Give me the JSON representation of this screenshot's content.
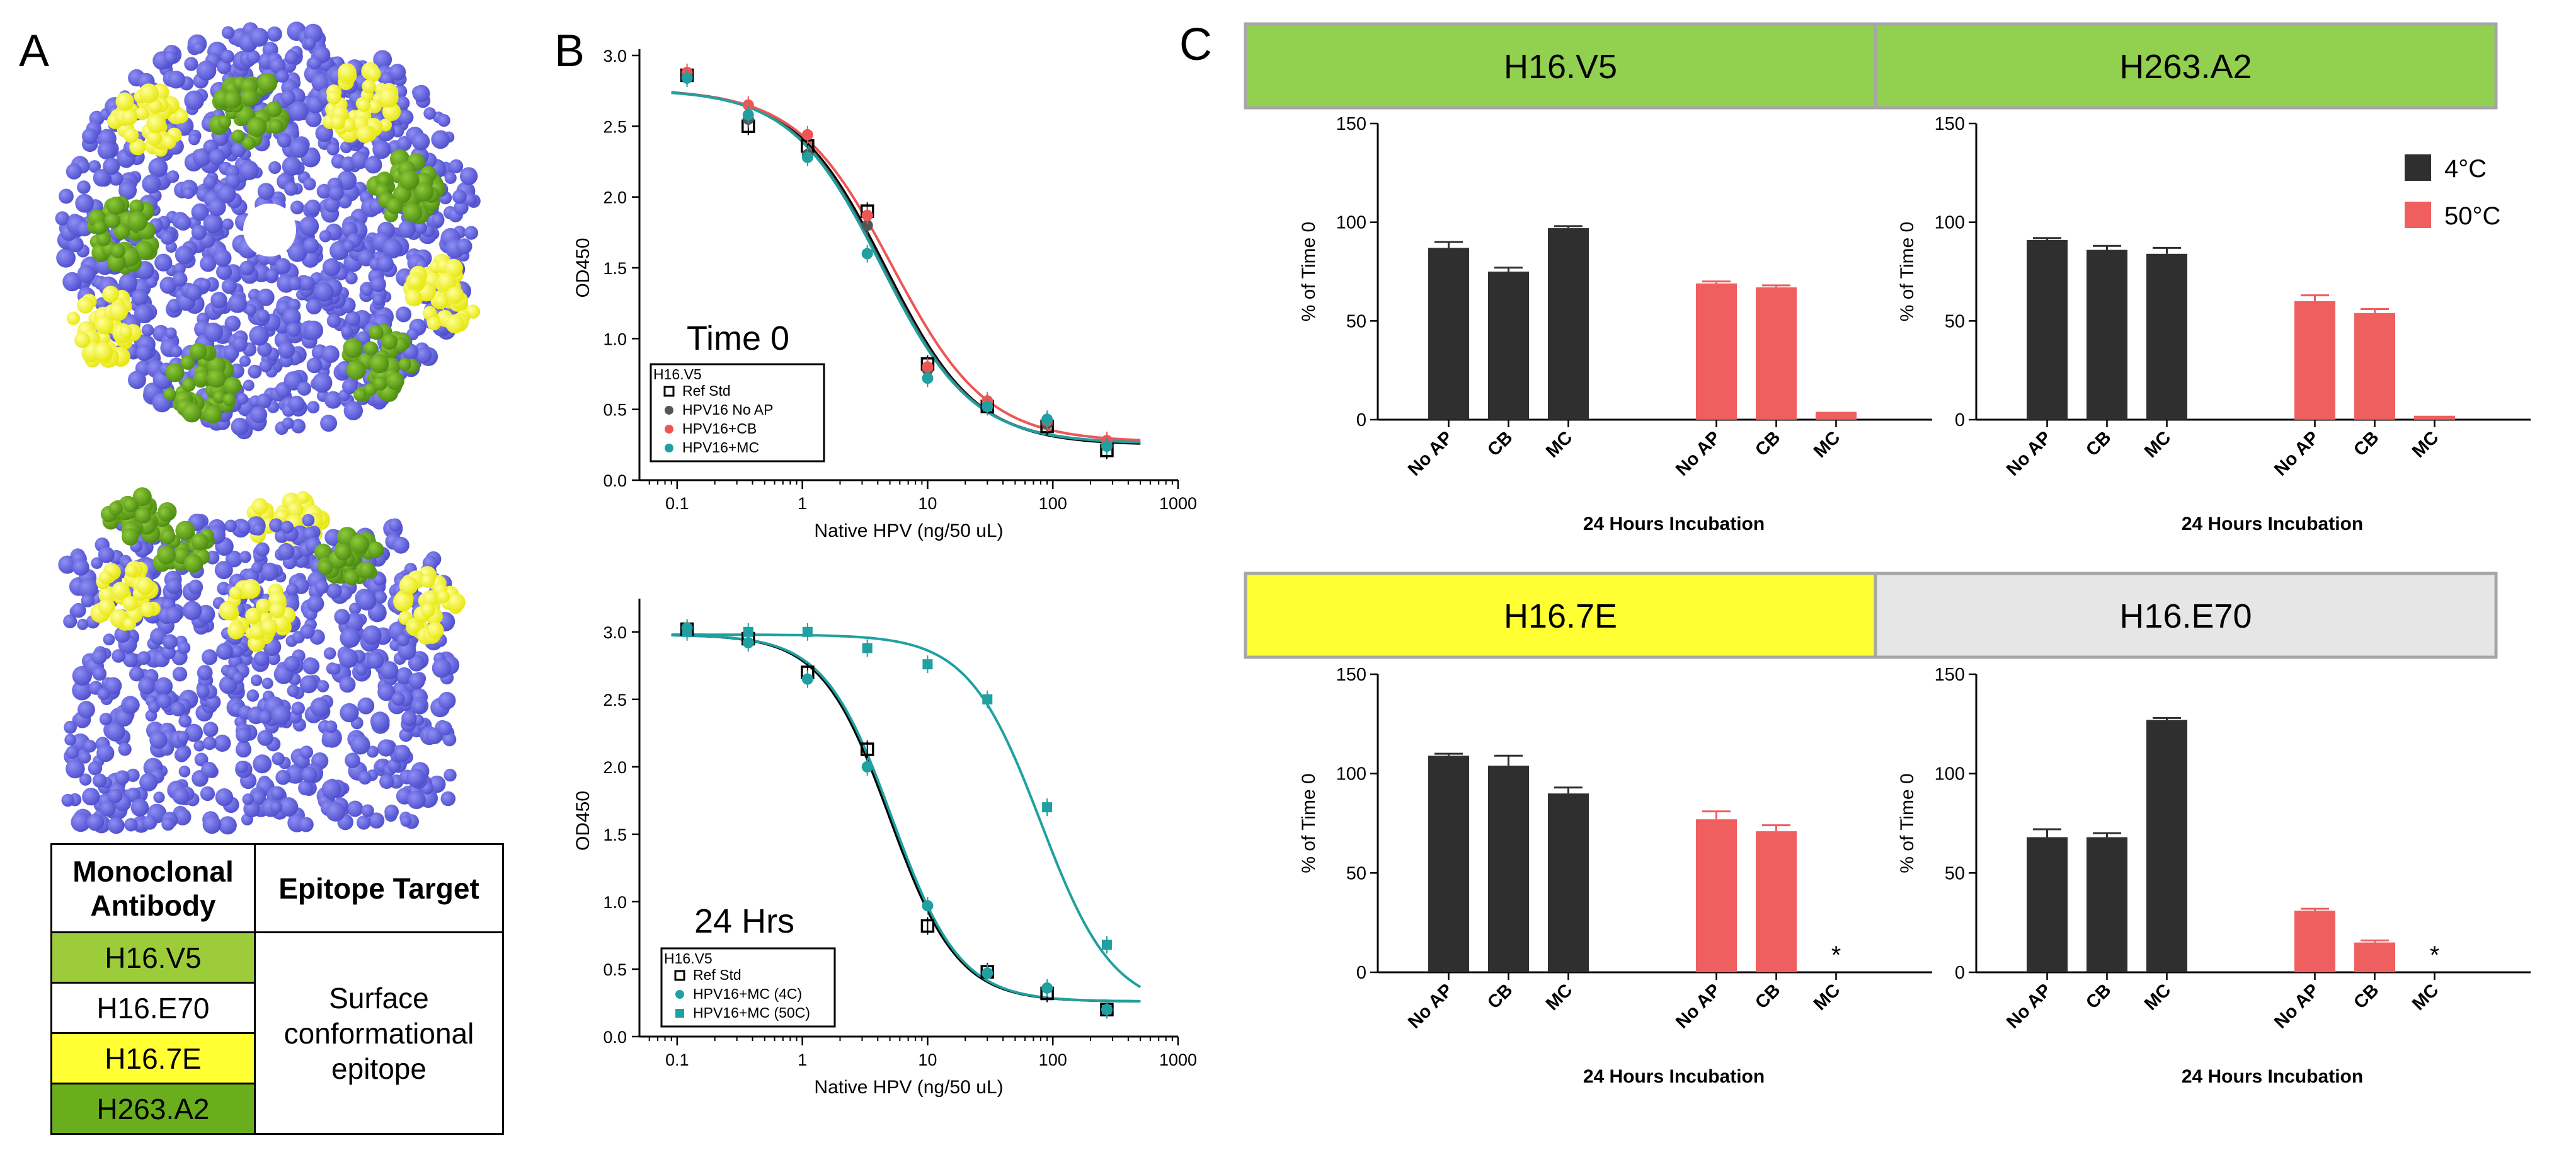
{
  "panel_labels": {
    "a": "A",
    "b": "B",
    "c": "C"
  },
  "colors": {
    "lattice": "#6666e6",
    "green_epitope": "#6aa318",
    "yellow_epitope": "#ffff33",
    "bar_4c": "#2f2f2f",
    "bar_50c": "#ef5f60",
    "title_green": "#92d050",
    "title_yellow": "#ffff33",
    "title_gray": "#e6e6e6",
    "teal": "#20a0a0",
    "red_curve": "#ee5555"
  },
  "table": {
    "col1_header": "Monoclonal Antibody",
    "col2_header": "Epitope Target",
    "rows": [
      {
        "antibody": "H16.V5",
        "color": "#9dcc3a"
      },
      {
        "antibody": "H16.E70",
        "color": "#ffffff"
      },
      {
        "antibody": "H16.7E",
        "color": "#ffff33"
      },
      {
        "antibody": "H263.A2",
        "color": "#6aae1e"
      }
    ],
    "epitope": [
      "Surface",
      "conformational",
      "epitope"
    ]
  },
  "legend_c": {
    "items": [
      {
        "label": "4°C",
        "color": "#2f2f2f"
      },
      {
        "label": "50°C",
        "color": "#ef5f60"
      }
    ]
  },
  "chart_data": [
    {
      "id": "b_top",
      "type": "scatter",
      "annotation": "Time  0",
      "xlabel": "Native HPV (ng/50 uL)",
      "ylabel": "OD450",
      "xscale": "log",
      "xlim": [
        0.05,
        1000
      ],
      "ylim": [
        0,
        3.0
      ],
      "x_ticks": [
        "0.1",
        "1",
        "10",
        "100",
        "1000"
      ],
      "y_ticks": [
        "0.0",
        "0.5",
        "1.0",
        "1.5",
        "2.0",
        "2.5",
        "3.0"
      ],
      "legend_title": "H16.V5",
      "legend_position": "bottom-left",
      "series": [
        {
          "name": "Ref Std",
          "marker": "square-open",
          "color": "#000000",
          "fit": {
            "top": 2.76,
            "bottom": 0.25,
            "ec50": 4.6,
            "hill": 1.2
          },
          "points": [
            [
              0.12,
              2.86
            ],
            [
              0.37,
              2.5
            ],
            [
              1.1,
              2.36
            ],
            [
              3.3,
              1.9
            ],
            [
              10,
              0.82
            ],
            [
              30,
              0.52
            ],
            [
              90,
              0.38
            ],
            [
              270,
              0.21
            ]
          ]
        },
        {
          "name": "HPV16 No AP",
          "marker": "circle",
          "color": "#555555",
          "fit": {
            "top": 2.76,
            "bottom": 0.26,
            "ec50": 4.4,
            "hill": 1.2
          },
          "points": [
            [
              0.12,
              2.85
            ],
            [
              0.37,
              2.55
            ],
            [
              1.1,
              2.3
            ],
            [
              3.3,
              1.8
            ],
            [
              10,
              0.78
            ],
            [
              30,
              0.55
            ],
            [
              90,
              0.4
            ],
            [
              270,
              0.25
            ]
          ]
        },
        {
          "name": "HPV16+CB",
          "marker": "circle",
          "color": "#ee5555",
          "fit": {
            "top": 2.76,
            "bottom": 0.27,
            "ec50": 5.2,
            "hill": 1.15
          },
          "points": [
            [
              0.12,
              2.88
            ],
            [
              0.37,
              2.65
            ],
            [
              1.1,
              2.44
            ],
            [
              3.3,
              1.87
            ],
            [
              10,
              0.8
            ],
            [
              30,
              0.56
            ],
            [
              90,
              0.42
            ],
            [
              270,
              0.28
            ]
          ]
        },
        {
          "name": "HPV16+MC",
          "marker": "circle",
          "color": "#20a0a0",
          "fit": {
            "top": 2.76,
            "bottom": 0.26,
            "ec50": 4.3,
            "hill": 1.2
          },
          "points": [
            [
              0.12,
              2.84
            ],
            [
              0.37,
              2.58
            ],
            [
              1.1,
              2.28
            ],
            [
              3.3,
              1.6
            ],
            [
              10,
              0.72
            ],
            [
              30,
              0.52
            ],
            [
              90,
              0.43
            ],
            [
              270,
              0.24
            ]
          ]
        }
      ]
    },
    {
      "id": "b_bottom",
      "type": "scatter",
      "annotation": "24 Hrs",
      "xlabel": "Native HPV (ng/50 uL)",
      "ylabel": "OD450",
      "xscale": "log",
      "xlim": [
        0.05,
        1000
      ],
      "ylim": [
        0,
        3.2
      ],
      "x_ticks": [
        "0.1",
        "1",
        "10",
        "100",
        "1000"
      ],
      "y_ticks": [
        "0.0",
        "0.5",
        "1.0",
        "1.5",
        "2.0",
        "2.5",
        "3.0"
      ],
      "legend_title": "H16.V5",
      "legend_position": "bottom-left",
      "series": [
        {
          "name": "Ref Std",
          "marker": "square-open",
          "color": "#000000",
          "fit": {
            "top": 2.98,
            "bottom": 0.26,
            "ec50": 5.0,
            "hill": 1.6
          },
          "points": [
            [
              0.12,
              3.02
            ],
            [
              0.37,
              2.95
            ],
            [
              1.1,
              2.7
            ],
            [
              3.3,
              2.13
            ],
            [
              10,
              0.82
            ],
            [
              30,
              0.48
            ],
            [
              90,
              0.32
            ],
            [
              270,
              0.2
            ]
          ]
        },
        {
          "name": "HPV16+MC (4C)",
          "marker": "circle",
          "color": "#20a0a0",
          "fit": {
            "top": 2.98,
            "bottom": 0.26,
            "ec50": 5.2,
            "hill": 1.6
          },
          "points": [
            [
              0.12,
              3.03
            ],
            [
              0.37,
              2.92
            ],
            [
              1.1,
              2.65
            ],
            [
              3.3,
              2.0
            ],
            [
              10,
              0.97
            ],
            [
              30,
              0.47
            ],
            [
              90,
              0.36
            ],
            [
              270,
              0.2
            ]
          ]
        },
        {
          "name": "HPV16+MC (50C)",
          "marker": "square",
          "color": "#20a0a0",
          "fit": {
            "top": 2.98,
            "bottom": 0.2,
            "ec50": 80,
            "hill": 1.5
          },
          "points": [
            [
              0.12,
              3.0
            ],
            [
              0.37,
              3.0
            ],
            [
              1.1,
              3.0
            ],
            [
              3.3,
              2.88
            ],
            [
              10,
              2.76
            ],
            [
              30,
              2.5
            ],
            [
              90,
              1.7
            ],
            [
              270,
              0.68
            ]
          ]
        }
      ]
    },
    {
      "id": "c_v5",
      "type": "bar",
      "title": "H16.V5",
      "title_color": "#92d050",
      "ylabel": "% of Time 0",
      "xlabel": "24 Hours Incubation",
      "ylim": [
        0,
        150
      ],
      "y_ticks": [
        "0",
        "50",
        "100",
        "150"
      ],
      "categories": [
        "No AP",
        "CB",
        "MC",
        "No AP",
        "CB",
        "MC"
      ],
      "values": [
        87,
        75,
        97,
        69,
        67,
        4
      ],
      "errors": [
        3,
        2,
        1,
        1,
        1,
        0
      ],
      "groups": [
        "4C",
        "4C",
        "4C",
        "50C",
        "50C",
        "50C"
      ],
      "stars": [
        "",
        "",
        "",
        "",
        "",
        ""
      ]
    },
    {
      "id": "c_a2",
      "type": "bar",
      "title": "H263.A2",
      "title_color": "#92d050",
      "ylabel": "% of Time 0",
      "xlabel": "24 Hours Incubation",
      "ylim": [
        0,
        150
      ],
      "y_ticks": [
        "0",
        "50",
        "100",
        "150"
      ],
      "categories": [
        "No AP",
        "CB",
        "MC",
        "No AP",
        "CB",
        "MC"
      ],
      "values": [
        91,
        86,
        84,
        60,
        54,
        2
      ],
      "errors": [
        1,
        2,
        3,
        3,
        2,
        0
      ],
      "groups": [
        "4C",
        "4C",
        "4C",
        "50C",
        "50C",
        "50C"
      ],
      "stars": [
        "",
        "",
        "",
        "",
        "",
        ""
      ]
    },
    {
      "id": "c_7e",
      "type": "bar",
      "title": "H16.7E",
      "title_color": "#ffff33",
      "ylabel": "% of Time 0",
      "xlabel": "24 Hours Incubation",
      "ylim": [
        0,
        150
      ],
      "y_ticks": [
        "0",
        "50",
        "100",
        "150"
      ],
      "categories": [
        "No AP",
        "CB",
        "MC",
        "No AP",
        "CB",
        "MC"
      ],
      "values": [
        109,
        104,
        90,
        77,
        71,
        0
      ],
      "errors": [
        1,
        5,
        3,
        4,
        3,
        0
      ],
      "groups": [
        "4C",
        "4C",
        "4C",
        "50C",
        "50C",
        "50C"
      ],
      "stars": [
        "",
        "",
        "",
        "",
        "",
        "*"
      ]
    },
    {
      "id": "c_e70",
      "type": "bar",
      "title": "H16.E70",
      "title_color": "#e6e6e6",
      "ylabel": "% of Time 0",
      "xlabel": "24 Hours Incubation",
      "ylim": [
        0,
        150
      ],
      "y_ticks": [
        "0",
        "50",
        "100",
        "150"
      ],
      "categories": [
        "No AP",
        "CB",
        "MC",
        "No AP",
        "CB",
        "MC"
      ],
      "values": [
        68,
        68,
        127,
        31,
        15,
        0
      ],
      "errors": [
        4,
        2,
        1,
        1,
        1,
        0
      ],
      "groups": [
        "4C",
        "4C",
        "4C",
        "50C",
        "50C",
        "50C"
      ],
      "stars": [
        "",
        "",
        "",
        "",
        "",
        "*"
      ]
    }
  ]
}
